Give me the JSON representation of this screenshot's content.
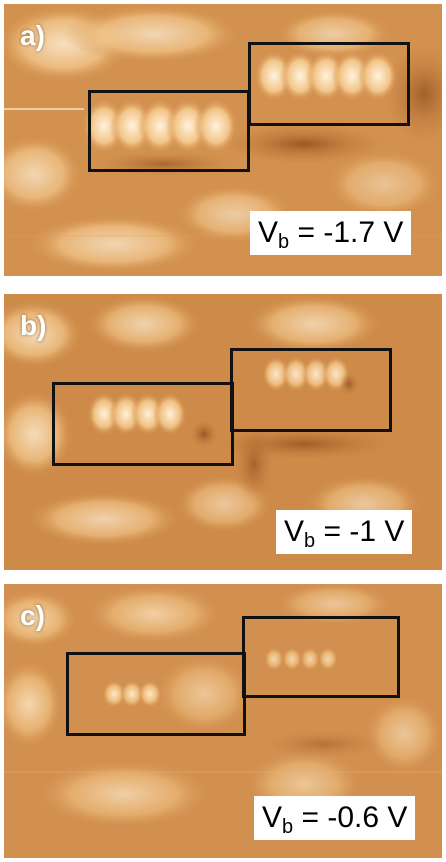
{
  "panels": [
    {
      "letter": "a)",
      "v_symbol": "V",
      "v_sub": "b",
      "v_value": " = -1.7 V"
    },
    {
      "letter": "b)",
      "v_symbol": "V",
      "v_sub": "b",
      "v_value": " = -1 V"
    },
    {
      "letter": "c)",
      "v_symbol": "V",
      "v_sub": "b",
      "v_value": " = -0.6 V"
    }
  ],
  "colors": {
    "base": "#d08a45",
    "highlight": "#fde6c4",
    "shadow": "#9a5420"
  }
}
